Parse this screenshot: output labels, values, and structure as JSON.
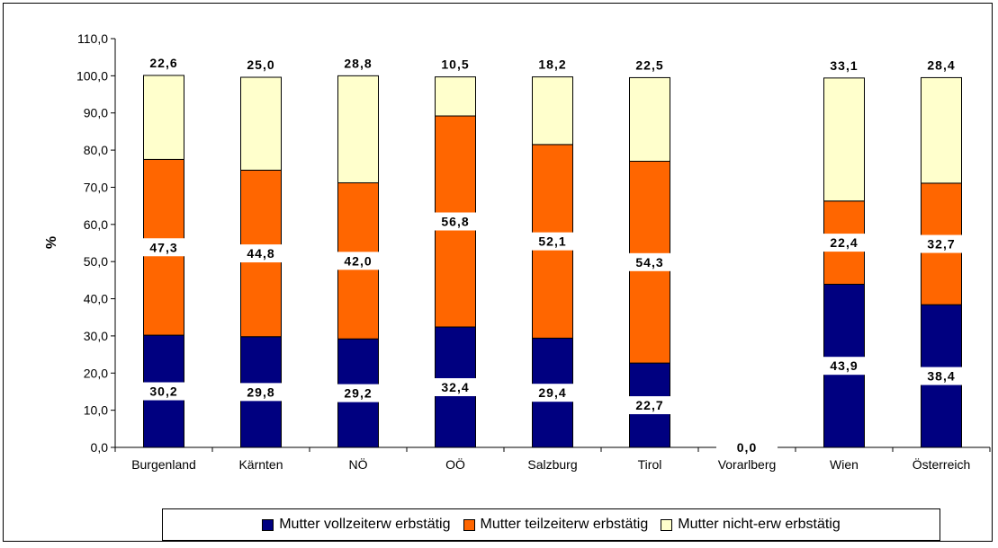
{
  "chart_data": {
    "type": "bar",
    "stacked": true,
    "categories": [
      "Burgenland",
      "Kärnten",
      "NÖ",
      "OÖ",
      "Salzburg",
      "Tirol",
      "Vorarlberg",
      "Wien",
      "Österreich"
    ],
    "ylabel": "%",
    "ylim": [
      0,
      110
    ],
    "yticks": [
      "0,0",
      "10,0",
      "20,0",
      "30,0",
      "40,0",
      "50,0",
      "60,0",
      "70,0",
      "80,0",
      "90,0",
      "100,0",
      "110,0"
    ],
    "series": [
      {
        "name": "Mutter vollzeiterw erbstätig",
        "color": "#000080",
        "values": [
          30.2,
          29.8,
          29.2,
          32.4,
          29.4,
          22.7,
          0.0,
          43.9,
          38.4
        ],
        "labels": [
          "30,2",
          "29,8",
          "29,2",
          "32,4",
          "29,4",
          "22,7",
          "0,0",
          "43,9",
          "38,4"
        ]
      },
      {
        "name": "Mutter teilzeiterw erbstätig",
        "color": "#FF6600",
        "values": [
          47.3,
          44.8,
          42.0,
          56.8,
          52.1,
          54.3,
          0.0,
          22.4,
          32.7
        ],
        "labels": [
          "47,3",
          "44,8",
          "42,0",
          "56,8",
          "52,1",
          "54,3",
          "",
          "22,4",
          "32,7"
        ]
      },
      {
        "name": "Mutter nicht-erw erbstätig",
        "color": "#FFFFCC",
        "values": [
          22.6,
          25.0,
          28.8,
          10.5,
          18.2,
          22.5,
          0.0,
          33.1,
          28.4
        ],
        "labels": [
          "22,6",
          "25,0",
          "28,8",
          "10,5",
          "18,2",
          "22,5",
          "",
          "33,1",
          "28,4"
        ]
      }
    ],
    "legend_position": "bottom",
    "grid": false
  }
}
